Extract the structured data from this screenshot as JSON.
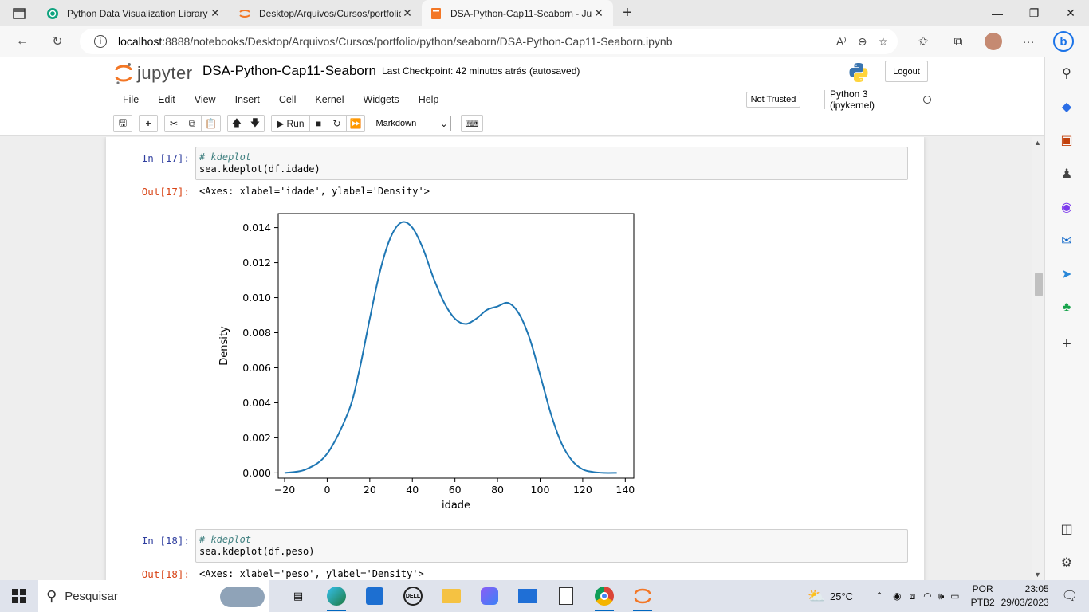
{
  "browser": {
    "tabs": [
      {
        "title": "Python Data Visualization Library",
        "icon": "openai-icon",
        "active": false
      },
      {
        "title": "Desktop/Arquivos/Cursos/portfolio",
        "icon": "jupyter-icon",
        "active": false
      },
      {
        "title": "DSA-Python-Cap11-Seaborn - Ju",
        "icon": "notebook-icon",
        "active": true
      }
    ],
    "address": {
      "host": "localhost",
      "path": ":8888/notebooks/Desktop/Arquivos/Cursos/portfolio/python/seaborn/DSA-Python-Cap11-Seaborn.ipynb"
    }
  },
  "jupyter": {
    "logo_text": "jupyter",
    "notebook_name": "DSA-Python-Cap11-Seaborn",
    "checkpoint": "Last Checkpoint: 42 minutos atrás",
    "autosave": "(autosaved)",
    "logout_label": "Logout",
    "menu": [
      "File",
      "Edit",
      "View",
      "Insert",
      "Cell",
      "Kernel",
      "Widgets",
      "Help"
    ],
    "not_trusted": "Not Trusted",
    "kernel": "Python 3 (ipykernel)",
    "run_label": "Run",
    "cell_type": "Markdown"
  },
  "cells": {
    "cell17": {
      "in_prompt": "In [17]:",
      "comment": "# kdeplot",
      "code": "sea.kdeplot(df.idade)",
      "out_prompt": "Out[17]:",
      "out_text": "<Axes: xlabel='idade', ylabel='Density'>"
    },
    "cell18": {
      "in_prompt": "In [18]:",
      "comment": "# kdeplot",
      "code": "sea.kdeplot(df.peso)",
      "out_prompt": "Out[18]:",
      "out_text": "<Axes: xlabel='peso', ylabel='Density'>"
    }
  },
  "chart_data": {
    "type": "line",
    "title": "",
    "xlabel": "idade",
    "ylabel": "Density",
    "xlim": [
      -23,
      144
    ],
    "ylim": [
      -0.0003,
      0.0148
    ],
    "xticks": [
      -20,
      0,
      20,
      40,
      60,
      80,
      100,
      120,
      140
    ],
    "xtick_labels": [
      "−20",
      "0",
      "20",
      "40",
      "60",
      "80",
      "100",
      "120",
      "140"
    ],
    "yticks": [
      0.0,
      0.002,
      0.004,
      0.006,
      0.008,
      0.01,
      0.012,
      0.014
    ],
    "ytick_labels": [
      "0.000",
      "0.002",
      "0.004",
      "0.006",
      "0.008",
      "0.010",
      "0.012",
      "0.014"
    ],
    "color": "#1f77b4",
    "series": [
      {
        "x": [
          -20,
          -10,
          0,
          10,
          15,
          20,
          25,
          30,
          35,
          40,
          45,
          50,
          55,
          60,
          65,
          70,
          75,
          80,
          85,
          90,
          95,
          100,
          105,
          110,
          115,
          120,
          125,
          130,
          136
        ],
        "y": [
          0.0,
          0.0002,
          0.0011,
          0.0035,
          0.0058,
          0.0088,
          0.0116,
          0.0135,
          0.0143,
          0.014,
          0.0128,
          0.0111,
          0.0097,
          0.0088,
          0.0085,
          0.0088,
          0.0093,
          0.0095,
          0.0097,
          0.0091,
          0.0077,
          0.0056,
          0.0034,
          0.0017,
          0.0007,
          0.0002,
          5e-05,
          0.0,
          0.0
        ]
      }
    ]
  },
  "taskbar": {
    "search_placeholder": "Pesquisar",
    "weather": "25°C",
    "lang_top": "POR",
    "lang_bottom": "PTB2",
    "time": "23:05",
    "date": "29/03/2023"
  }
}
